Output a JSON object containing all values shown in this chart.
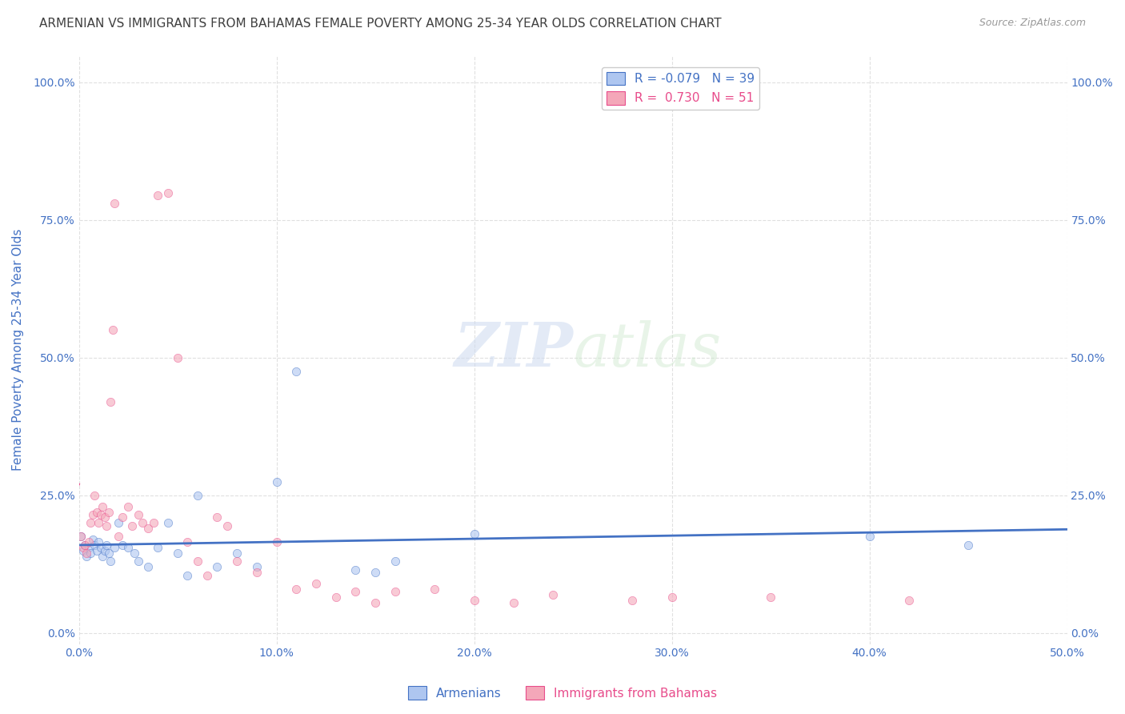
{
  "title": "ARMENIAN VS IMMIGRANTS FROM BAHAMAS FEMALE POVERTY AMONG 25-34 YEAR OLDS CORRELATION CHART",
  "source": "Source: ZipAtlas.com",
  "ylabel": "Female Poverty Among 25-34 Year Olds",
  "xlim": [
    0.0,
    0.5
  ],
  "ylim": [
    -0.02,
    1.05
  ],
  "xticks": [
    0.0,
    0.1,
    0.2,
    0.3,
    0.4,
    0.5
  ],
  "xticklabels": [
    "0.0%",
    "10.0%",
    "20.0%",
    "30.0%",
    "40.0%",
    "50.0%"
  ],
  "yticks": [
    0.0,
    0.25,
    0.5,
    0.75,
    1.0
  ],
  "yticklabels": [
    "0.0%",
    "25.0%",
    "50.0%",
    "75.0%",
    "100.0%"
  ],
  "watermark_zip": "ZIP",
  "watermark_atlas": "atlas",
  "legend_line1": "R = -0.079   N = 39",
  "legend_line2": "R =  0.730   N = 51",
  "armenians_scatter_x": [
    0.001,
    0.002,
    0.003,
    0.004,
    0.005,
    0.006,
    0.007,
    0.008,
    0.009,
    0.01,
    0.011,
    0.012,
    0.013,
    0.014,
    0.015,
    0.016,
    0.018,
    0.02,
    0.022,
    0.025,
    0.028,
    0.03,
    0.035,
    0.04,
    0.045,
    0.05,
    0.055,
    0.06,
    0.07,
    0.08,
    0.09,
    0.1,
    0.11,
    0.14,
    0.15,
    0.16,
    0.2,
    0.4,
    0.45
  ],
  "armenians_scatter_y": [
    0.175,
    0.15,
    0.16,
    0.14,
    0.155,
    0.145,
    0.17,
    0.16,
    0.15,
    0.165,
    0.155,
    0.14,
    0.15,
    0.16,
    0.145,
    0.13,
    0.155,
    0.2,
    0.16,
    0.155,
    0.145,
    0.13,
    0.12,
    0.155,
    0.2,
    0.145,
    0.105,
    0.25,
    0.12,
    0.145,
    0.12,
    0.275,
    0.475,
    0.115,
    0.11,
    0.13,
    0.18,
    0.175,
    0.16
  ],
  "bahamas_scatter_x": [
    0.001,
    0.002,
    0.003,
    0.004,
    0.005,
    0.006,
    0.007,
    0.008,
    0.009,
    0.01,
    0.011,
    0.012,
    0.013,
    0.014,
    0.015,
    0.016,
    0.017,
    0.018,
    0.02,
    0.022,
    0.025,
    0.027,
    0.03,
    0.032,
    0.035,
    0.038,
    0.04,
    0.045,
    0.05,
    0.055,
    0.06,
    0.065,
    0.07,
    0.075,
    0.08,
    0.09,
    0.1,
    0.11,
    0.12,
    0.13,
    0.14,
    0.15,
    0.16,
    0.18,
    0.2,
    0.22,
    0.24,
    0.28,
    0.3,
    0.35,
    0.42
  ],
  "bahamas_scatter_y": [
    0.175,
    0.155,
    0.16,
    0.145,
    0.165,
    0.2,
    0.215,
    0.25,
    0.22,
    0.2,
    0.215,
    0.23,
    0.21,
    0.195,
    0.22,
    0.42,
    0.55,
    0.78,
    0.175,
    0.21,
    0.23,
    0.195,
    0.215,
    0.2,
    0.19,
    0.2,
    0.795,
    0.8,
    0.5,
    0.165,
    0.13,
    0.105,
    0.21,
    0.195,
    0.13,
    0.11,
    0.165,
    0.08,
    0.09,
    0.065,
    0.075,
    0.055,
    0.075,
    0.08,
    0.06,
    0.055,
    0.07,
    0.06,
    0.065,
    0.065,
    0.06
  ],
  "armenians_color": "#aec6f0",
  "bahamas_color": "#f4a7b9",
  "armenians_line_color": "#4472c4",
  "bahamas_line_color": "#e84c8b",
  "bahamas_dash_color": "#c8c8c8",
  "grid_color": "#e0e0e0",
  "title_color": "#404040",
  "tick_color": "#4472c4",
  "bg_color": "#ffffff",
  "marker_size": 55,
  "marker_alpha": 0.6,
  "marker_lw": 0.5
}
